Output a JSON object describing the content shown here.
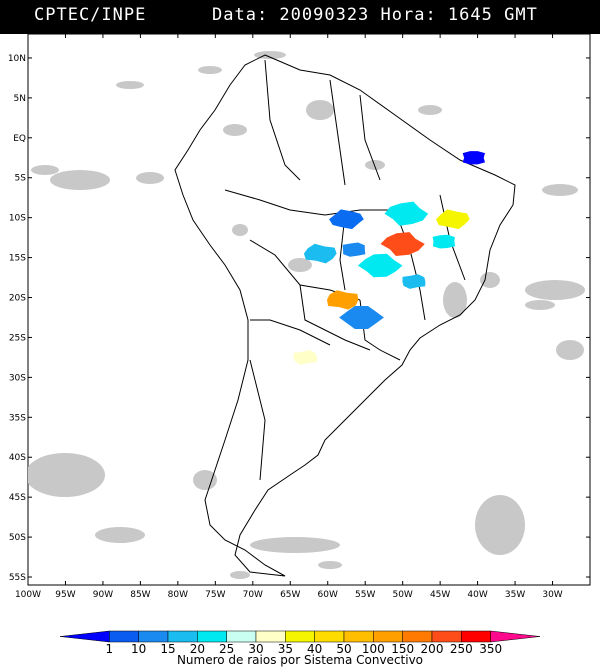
{
  "header": {
    "source": "CPTEC/INPE",
    "datetime": "Data: 20090323 Hora: 1645 GMT"
  },
  "map": {
    "lon_range": [
      -100,
      -25
    ],
    "lat_range": [
      -56,
      13
    ],
    "lat_ticks": [
      "10N",
      "5N",
      "EQ",
      "5S",
      "10S",
      "15S",
      "20S",
      "25S",
      "30S",
      "35S",
      "40S",
      "45S",
      "50S",
      "55S"
    ],
    "lon_ticks": [
      "100W",
      "95W",
      "90W",
      "85W",
      "80W",
      "75W",
      "70W",
      "65W",
      "60W",
      "55W",
      "50W",
      "45W",
      "40W",
      "35W",
      "30W"
    ],
    "cloud_color": "#c8c8c8",
    "convective_systems": [
      {
        "name": "ne-brazil-system",
        "color": "#0000ff",
        "lon": -40.5,
        "lat": -2.5
      },
      {
        "name": "mato-grosso-north",
        "color": "#0a6cf0",
        "lon": -57.5,
        "lat": -10.2
      },
      {
        "name": "tocantins-system",
        "color": "#00e8f0",
        "lon": -49.5,
        "lat": -9.5
      },
      {
        "name": "bahia-west",
        "color": "#00e8f0",
        "lon": -44.5,
        "lat": -13.0
      },
      {
        "name": "bahia-yellow",
        "color": "#f5f500",
        "lon": -43.3,
        "lat": -10.2
      },
      {
        "name": "goias-red",
        "color": "#ff4d1a",
        "lon": -50.0,
        "lat": -13.3
      },
      {
        "name": "mato-grosso-blue",
        "color": "#1b8af0",
        "lon": -56.5,
        "lat": -14.0
      },
      {
        "name": "rondonia-system",
        "color": "#1bbcf0",
        "lon": -61.0,
        "lat": -14.5
      },
      {
        "name": "mato-grosso-cyan",
        "color": "#00e8f0",
        "lon": -53.0,
        "lat": -16.0
      },
      {
        "name": "minas-system",
        "color": "#1bbcf0",
        "lon": -48.5,
        "lat": -18.0
      },
      {
        "name": "pantanal-orange",
        "color": "#ffa000",
        "lon": -58.0,
        "lat": -20.3
      },
      {
        "name": "paraguay-blue",
        "color": "#1b8af0",
        "lon": -55.5,
        "lat": -22.5
      },
      {
        "name": "argentina-cream",
        "color": "#ffffc8",
        "lon": -63.0,
        "lat": -27.5
      }
    ]
  },
  "colorbar": {
    "labels": [
      "1",
      "10",
      "15",
      "20",
      "25",
      "30",
      "35",
      "40",
      "50",
      "100",
      "150",
      "200",
      "250",
      "350"
    ],
    "colors": [
      "#0000ff",
      "#0a5cf0",
      "#1b8af0",
      "#1bbcf0",
      "#00e8f0",
      "#c8fff0",
      "#ffffc8",
      "#f5f500",
      "#ffdc00",
      "#ffbe00",
      "#ffa000",
      "#ff7a00",
      "#ff4d1a",
      "#ff0000",
      "#ff0a8c"
    ],
    "title": "Numero de raios por Sistema Convectivo"
  }
}
